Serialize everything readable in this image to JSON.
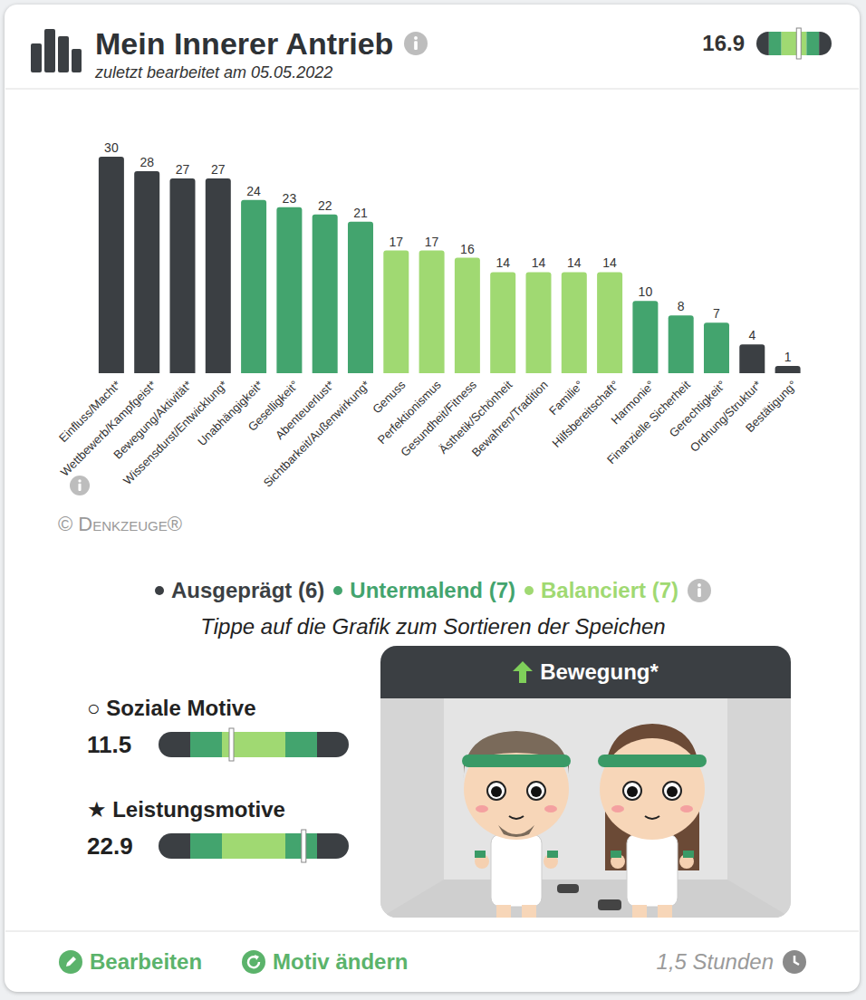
{
  "header": {
    "title": "Mein Innerer Antrieb",
    "subtitle": "zuletzt bearbeitet am 05.05.2022",
    "score": 16.9
  },
  "gauge": {
    "range": [
      0,
      30
    ],
    "bands": [
      0,
      5,
      10,
      20,
      25,
      30
    ],
    "colors": [
      "#3b3f43",
      "#43a46e",
      "#a0d972",
      "#43a46e",
      "#3b3f43"
    ]
  },
  "chart_data": {
    "type": "bar",
    "categories": [
      "Einfluss/Macht*",
      "Wettbewerb/Kampfgeist*",
      "Bewegung/Aktivität*",
      "Wissensdurst/Entwicklung*",
      "Unabhängigkeit*",
      "Geselligkeit°",
      "Abenteuerlust*",
      "Sichtbarkeit/Außenwirkung*",
      "Genuss",
      "Perfektionismus",
      "Gesundheit/Fitness",
      "Ästhetik/Schönheit",
      "Bewahren/Tradition",
      "Familie°",
      "Hilfsbereitschaft°",
      "Harmonie°",
      "Finanzielle Sicherheit",
      "Gerechtigkeit°",
      "Ordnung/Struktur*",
      "Bestätigung°"
    ],
    "values": [
      30,
      28,
      27,
      27,
      24,
      23,
      22,
      21,
      17,
      17,
      16,
      14,
      14,
      14,
      14,
      10,
      8,
      7,
      4,
      1
    ],
    "colors": [
      "#3b3f43",
      "#3b3f43",
      "#3b3f43",
      "#3b3f43",
      "#43a46e",
      "#43a46e",
      "#43a46e",
      "#43a46e",
      "#a0d972",
      "#a0d972",
      "#a0d972",
      "#a0d972",
      "#a0d972",
      "#a0d972",
      "#a0d972",
      "#43a46e",
      "#43a46e",
      "#43a46e",
      "#3b3f43",
      "#3b3f43"
    ],
    "ylim": [
      0,
      30
    ],
    "data_labels": true,
    "tick_labels": "x"
  },
  "copyright": "© Denkzeuge®",
  "classes": [
    {
      "label": "Ausgeprägt (6)",
      "color": "#3b3f43"
    },
    {
      "label": "Untermalend (7)",
      "color": "#43a46e"
    },
    {
      "label": "Balanciert (7)",
      "color": "#a0d972"
    }
  ],
  "hint": "Tippe auf die Grafik zum Sortieren der Speichen",
  "motives": [
    {
      "symbol": "○",
      "name": "Soziale Motive",
      "value": 11.5
    },
    {
      "symbol": "★",
      "name": "Leistungsmotive",
      "value": 22.9
    }
  ],
  "motive_card": {
    "title": "Bewegung*"
  },
  "footer": {
    "actions": [
      "Bearbeiten",
      "Motiv ändern"
    ],
    "duration": "1,5 Stunden"
  }
}
